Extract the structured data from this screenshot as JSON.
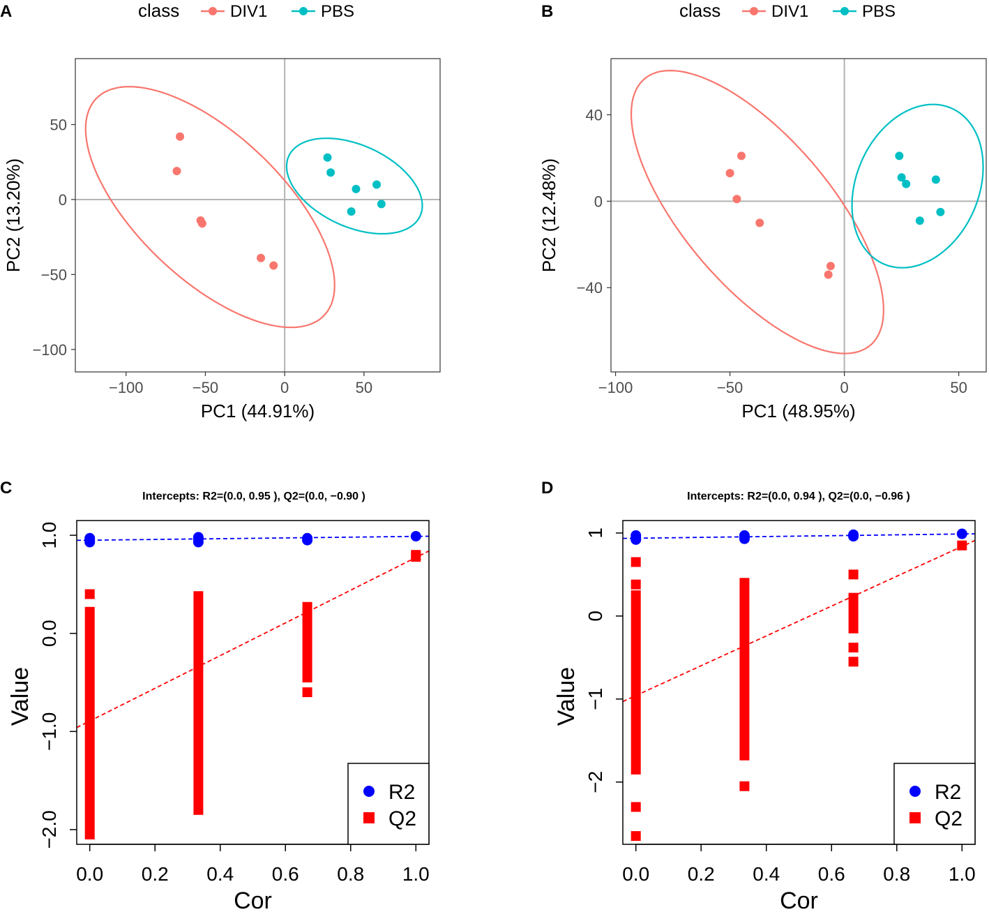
{
  "figure": {
    "panel_labels": [
      "A",
      "B",
      "C",
      "D"
    ]
  },
  "colors": {
    "div1": "#F8766D",
    "pbs": "#00BFC4",
    "r2": "#0000FF",
    "q2": "#FF0000",
    "grid_zero": "#b3b3b3"
  },
  "chart_data": [
    {
      "panel": "A",
      "type": "scatter",
      "legend_title": "class",
      "legend": [
        "DIV1",
        "PBS"
      ],
      "xlabel": "PC1 (44.91%)",
      "ylabel": "PC2 (13.20%)",
      "xlim": [
        -132,
        98
      ],
      "ylim": [
        -115,
        94
      ],
      "xticks": [
        -100,
        -50,
        0,
        50
      ],
      "xtick_labels": [
        "−100",
        "−50",
        "0",
        "50"
      ],
      "yticks": [
        -100,
        -50,
        0,
        50
      ],
      "ytick_labels": [
        "−100",
        "−50",
        "0",
        "50"
      ],
      "series": [
        {
          "name": "DIV1",
          "color": "#F8766D",
          "points": [
            [
              -66,
              42
            ],
            [
              -68,
              19
            ],
            [
              -53,
              -14
            ],
            [
              -52,
              -16
            ],
            [
              -15,
              -39
            ],
            [
              -7,
              -44
            ]
          ],
          "ellipse": {
            "cx": -47,
            "cy": -5,
            "rx": 102,
            "ry": 47,
            "angle_deg": -46
          }
        },
        {
          "name": "PBS",
          "color": "#00BFC4",
          "points": [
            [
              27,
              28
            ],
            [
              29,
              18
            ],
            [
              45,
              7
            ],
            [
              58,
              10
            ],
            [
              42,
              -8
            ],
            [
              61,
              -3
            ]
          ],
          "ellipse": {
            "cx": 44,
            "cy": 9,
            "rx": 46,
            "ry": 27,
            "angle_deg": -27
          }
        }
      ]
    },
    {
      "panel": "B",
      "type": "scatter",
      "legend_title": "class",
      "legend": [
        "DIV1",
        "PBS"
      ],
      "xlabel": "PC1 (48.95%)",
      "ylabel": "PC2 (12.48%)",
      "xlim": [
        -102,
        62
      ],
      "ylim": [
        -79,
        66
      ],
      "xticks": [
        -100,
        -50,
        0,
        50
      ],
      "xtick_labels": [
        "−100",
        "−50",
        "0",
        "50"
      ],
      "yticks": [
        -40,
        0,
        40
      ],
      "ytick_labels": [
        "−40",
        "0",
        "40"
      ],
      "series": [
        {
          "name": "DIV1",
          "color": "#F8766D",
          "points": [
            [
              -45,
              21
            ],
            [
              -50,
              13
            ],
            [
              -47,
              1
            ],
            [
              -37,
              -10
            ],
            [
              -6,
              -30
            ],
            [
              -7,
              -34
            ]
          ],
          "ellipse": {
            "cx": -38,
            "cy": -5,
            "rx": 79,
            "ry": 33,
            "angle_deg": -52
          }
        },
        {
          "name": "PBS",
          "color": "#00BFC4",
          "points": [
            [
              24,
              21
            ],
            [
              25,
              11
            ],
            [
              27,
              8
            ],
            [
              40,
              10
            ],
            [
              33,
              -9
            ],
            [
              42,
              -5
            ]
          ],
          "ellipse": {
            "cx": 32,
            "cy": 7,
            "rx": 27,
            "ry": 39,
            "angle_deg": -20
          }
        }
      ]
    },
    {
      "panel": "C",
      "type": "scatter",
      "title": "Intercepts: R2=(0.0, 0.95 ), Q2=(0.0, −0.90 )",
      "xlabel": "Cor",
      "ylabel": "Value",
      "xlim": [
        -0.04,
        1.04
      ],
      "ylim": [
        -2.15,
        1.15
      ],
      "xticks": [
        0,
        0.2,
        0.4,
        0.6,
        0.8,
        1.0
      ],
      "xtick_labels": [
        "0.0",
        "0.2",
        "0.4",
        "0.6",
        "0.8",
        "1.0"
      ],
      "yticks": [
        -2.0,
        -1.0,
        0.0,
        1.0
      ],
      "ytick_labels": [
        "−2.0",
        "−1.0",
        "0.0",
        "1.0"
      ],
      "legend": [
        "R2",
        "Q2"
      ],
      "r2_points": [
        [
          0,
          0.95
        ],
        [
          0,
          0.93
        ],
        [
          0,
          0.97
        ],
        [
          0.333,
          0.96
        ],
        [
          0.333,
          0.93
        ],
        [
          0.333,
          0.98
        ],
        [
          0.667,
          0.97
        ],
        [
          0.667,
          0.95
        ],
        [
          1.0,
          0.99
        ]
      ],
      "q2_ranges": [
        [
          0,
          -2.05,
          0.22
        ],
        [
          0.333,
          -1.8,
          0.38
        ],
        [
          0.667,
          -0.45,
          0.27
        ]
      ],
      "q2_points": [
        [
          0,
          0.4
        ],
        [
          0.667,
          -0.6
        ],
        [
          1.0,
          0.8
        ],
        [
          1.0,
          0.78
        ]
      ],
      "r2_line": [
        [
          -0.04,
          0.948
        ],
        [
          1.04,
          0.99
        ]
      ],
      "q2_line": [
        [
          -0.04,
          -0.96
        ],
        [
          1.04,
          0.84
        ]
      ]
    },
    {
      "panel": "D",
      "type": "scatter",
      "title": "Intercepts: R2=(0.0, 0.94 ), Q2=(0.0, −0.96 )",
      "xlabel": "Cor",
      "ylabel": "Value",
      "xlim": [
        -0.04,
        1.04
      ],
      "ylim": [
        -2.75,
        1.15
      ],
      "xticks": [
        0,
        0.2,
        0.4,
        0.6,
        0.8,
        1.0
      ],
      "xtick_labels": [
        "0.0",
        "0.2",
        "0.4",
        "0.6",
        "0.8",
        "1.0"
      ],
      "yticks": [
        -2,
        -1,
        0,
        1
      ],
      "ytick_labels": [
        "−2",
        "−1",
        "0",
        "1"
      ],
      "legend": [
        "R2",
        "Q2"
      ],
      "r2_points": [
        [
          0,
          0.94
        ],
        [
          0,
          0.92
        ],
        [
          0,
          0.97
        ],
        [
          0.333,
          0.95
        ],
        [
          0.333,
          0.93
        ],
        [
          0.333,
          0.97
        ],
        [
          0.667,
          0.96
        ],
        [
          0.667,
          0.98
        ],
        [
          1.0,
          0.99
        ]
      ],
      "q2_ranges": [
        [
          0,
          -1.85,
          0.25
        ],
        [
          0.333,
          -1.68,
          0.4
        ],
        [
          0.667,
          -0.15,
          0.22
        ]
      ],
      "q2_points": [
        [
          0,
          0.65
        ],
        [
          0,
          0.38
        ],
        [
          0,
          -2.3
        ],
        [
          0,
          -2.65
        ],
        [
          0.333,
          -2.05
        ],
        [
          0.667,
          0.5
        ],
        [
          0.667,
          -0.38
        ],
        [
          0.667,
          -0.55
        ],
        [
          1.0,
          0.85
        ]
      ],
      "r2_line": [
        [
          -0.04,
          0.935
        ],
        [
          1.04,
          0.99
        ]
      ],
      "q2_line": [
        [
          -0.04,
          -1.03
        ],
        [
          1.04,
          0.91
        ]
      ]
    }
  ]
}
